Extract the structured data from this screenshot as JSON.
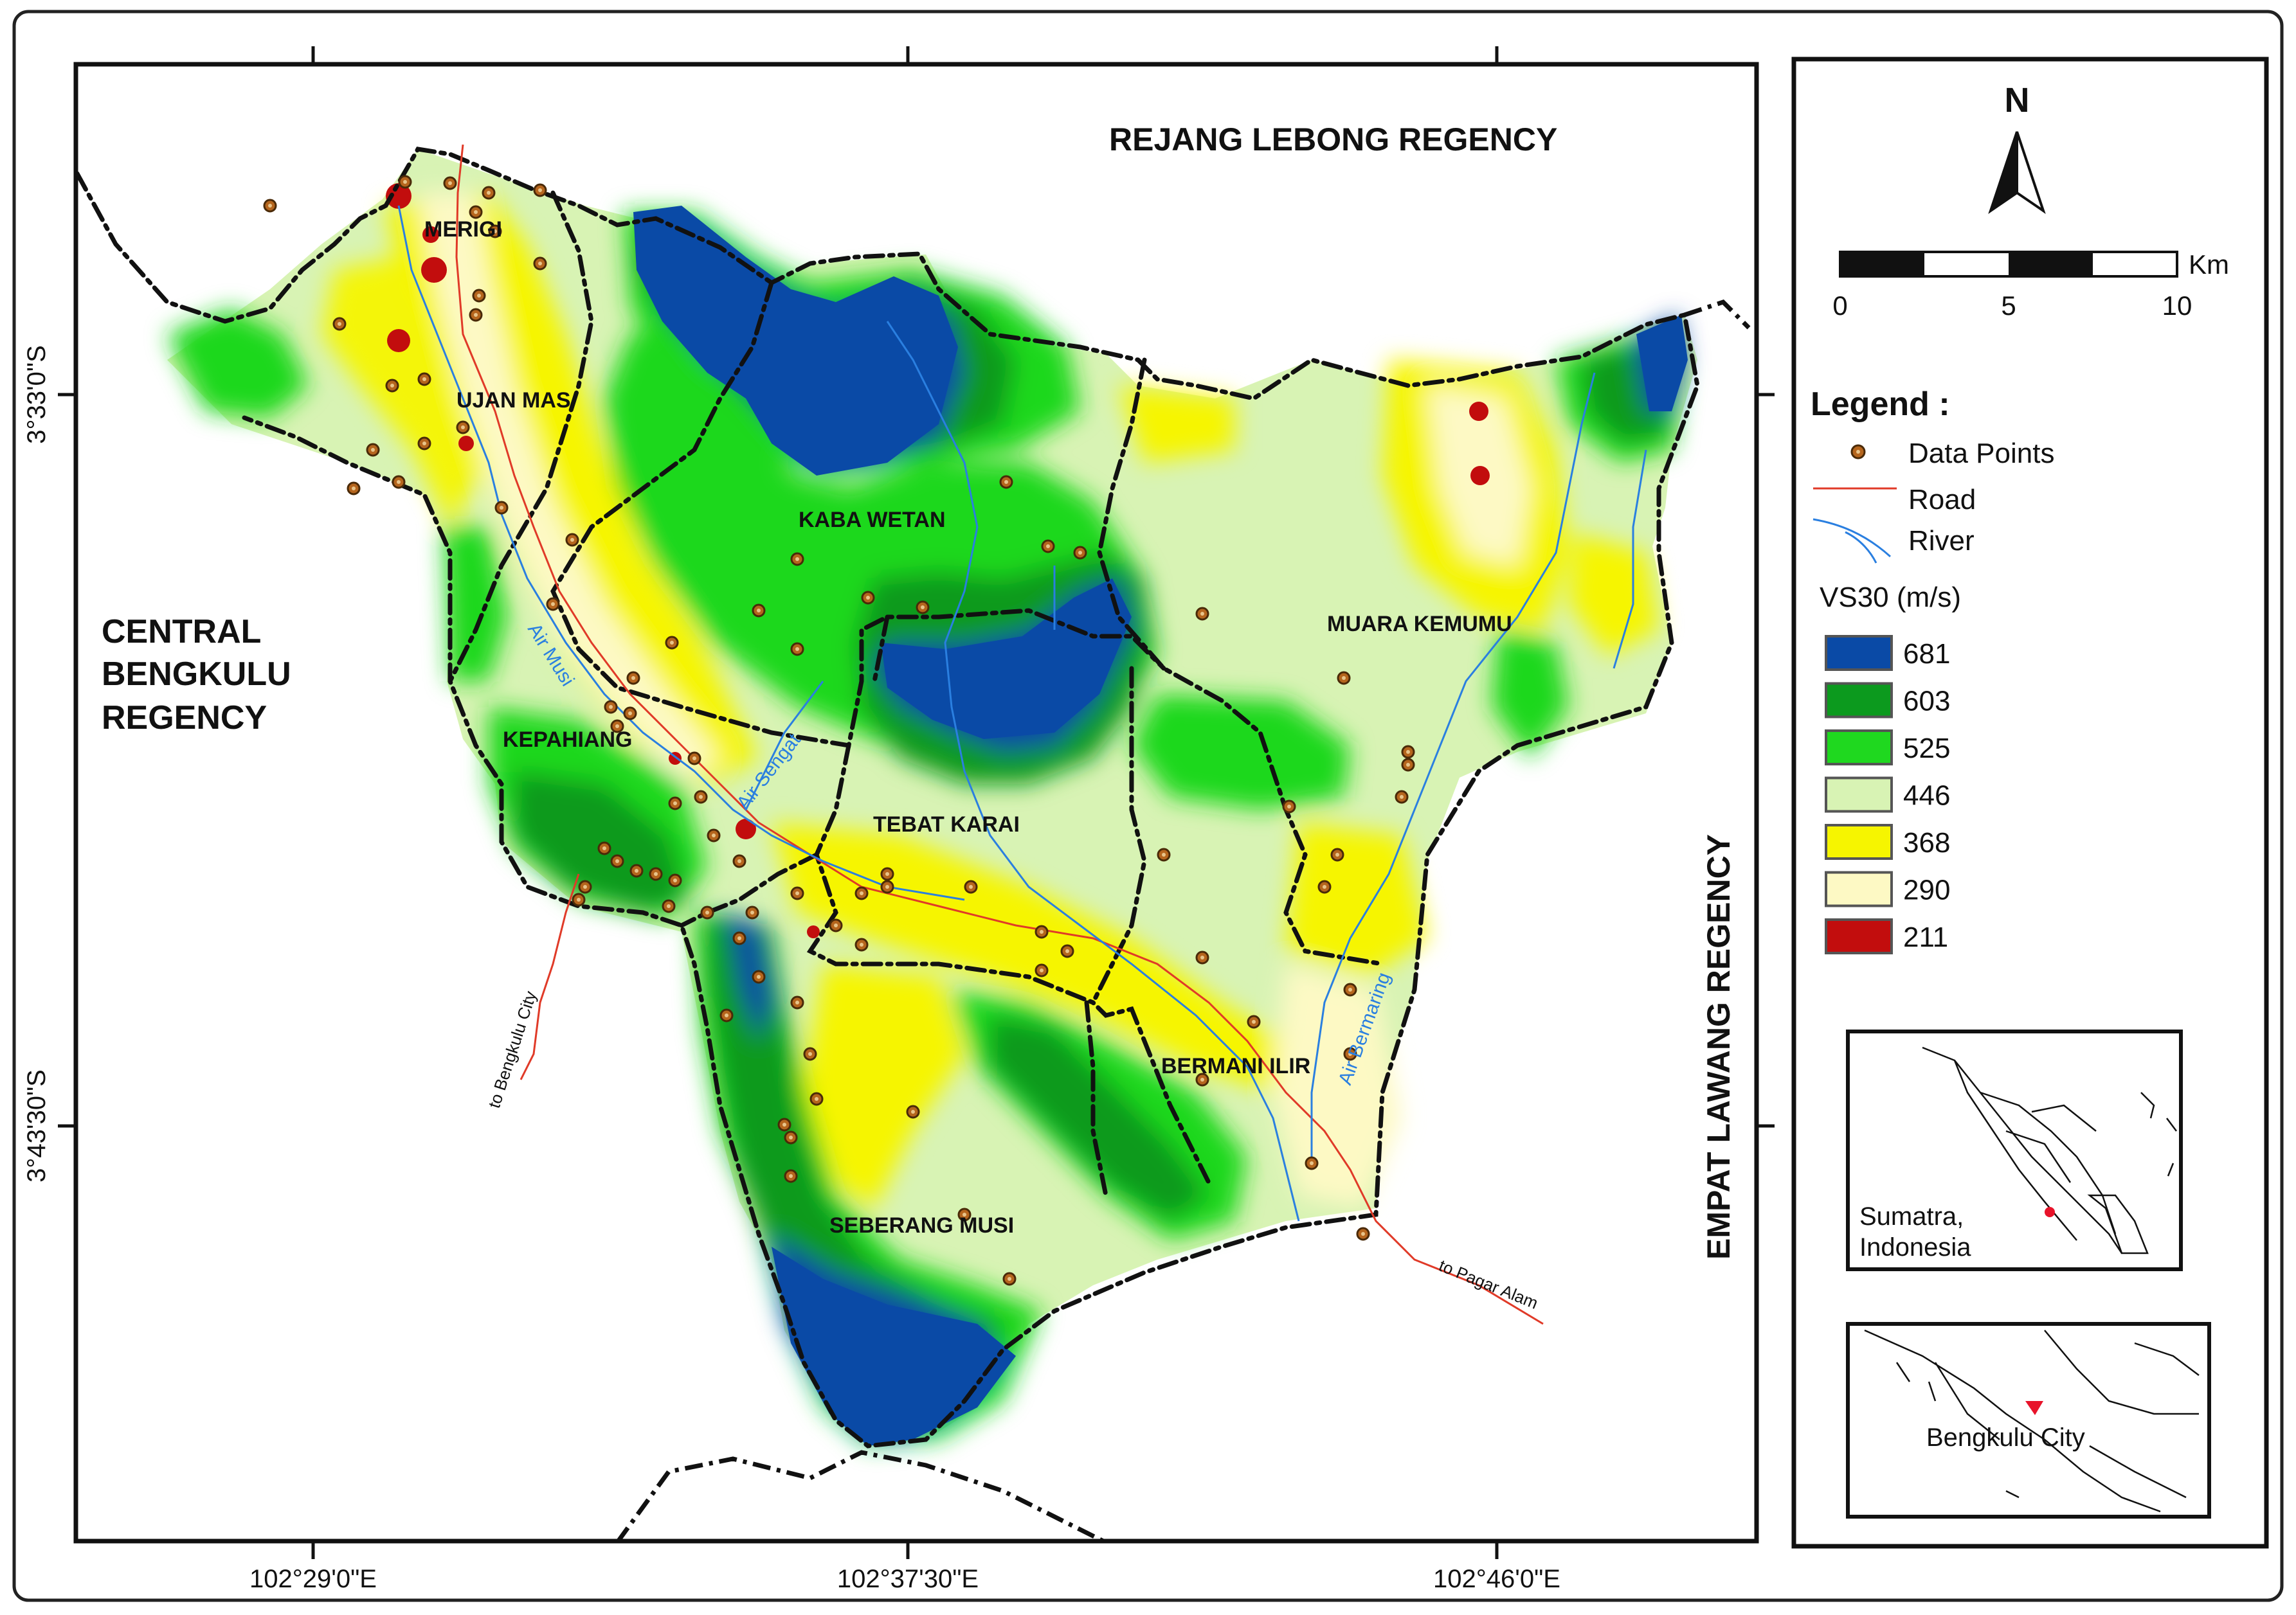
{
  "map": {
    "regions": {
      "north": "REJANG LEBONG REGENCY",
      "west_line1": "CENTRAL",
      "west_line2": "BENGKULU",
      "west_line3": "REGENCY",
      "east": "EMPAT LAWANG REGENCY"
    },
    "districts": [
      "MERIGI",
      "UJAN MAS",
      "KABA WETAN",
      "KEPAHIANG",
      "TEBAT KARAI",
      "MUARA KEMUMU",
      "BERMANI ILIR",
      "SEBERANG MUSI"
    ],
    "rivers": [
      "Air Musi",
      "Air Sengat",
      "Air Bermaring"
    ],
    "roads": [
      "to Bengkulu City",
      "to Pagar Alam"
    ],
    "coords": {
      "lon": [
        "102°29'0\"E",
        "102°37'30\"E",
        "102°46'0\"E"
      ],
      "lat": [
        "3°33'0\"S",
        "3°43'30\"S"
      ]
    }
  },
  "north_arrow": {
    "label": "N"
  },
  "scale_bar": {
    "unit": "Km",
    "ticks": [
      "0",
      "5",
      "10"
    ]
  },
  "legend": {
    "title": "Legend :",
    "items": {
      "points": "Data Points",
      "road": "Road",
      "river": "River"
    },
    "vs30_title": "VS30 (m/s)",
    "classes": [
      {
        "value": "681",
        "color": "#0a4aa6"
      },
      {
        "value": "603",
        "color": "#0c9a1e"
      },
      {
        "value": "525",
        "color": "#1fd81f"
      },
      {
        "value": "446",
        "color": "#d8f3b4"
      },
      {
        "value": "368",
        "color": "#f6f500"
      },
      {
        "value": "290",
        "color": "#fdf9c4"
      },
      {
        "value": "211",
        "color": "#c20d0d"
      }
    ]
  },
  "insets": {
    "sumatra_line1": "Sumatra,",
    "sumatra_line2": "Indonesia",
    "bengkulu": "Bengkulu City"
  },
  "colors": {
    "road": "#e03a28",
    "river": "#2a7fe0",
    "point": "#b5651d"
  }
}
